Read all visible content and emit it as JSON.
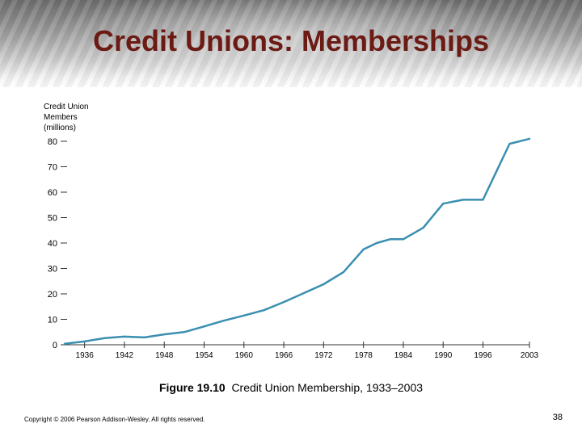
{
  "slide": {
    "title": "Credit Unions: Memberships",
    "caption_bold": "Figure 19.10",
    "caption_text": "Credit Union Membership, 1933–2003",
    "copyright": "Copyright © 2006 Pearson Addison-Wesley. All rights reserved.",
    "page_number": "38"
  },
  "chart_data": {
    "type": "line",
    "ylabel_lines": [
      "Credit Union",
      "Members",
      "(millions)"
    ],
    "xlabel": "",
    "xlim": [
      1933,
      2003
    ],
    "ylim": [
      0,
      80
    ],
    "yticks": [
      0,
      10,
      20,
      30,
      40,
      50,
      60,
      70,
      80
    ],
    "xticks": [
      1936,
      1942,
      1948,
      1954,
      1960,
      1966,
      1972,
      1978,
      1984,
      1990,
      1996,
      2003
    ],
    "grid": false,
    "line_color": "#3a8fb0",
    "series": [
      {
        "x": [
          1933,
          1936,
          1939,
          1942,
          1945,
          1948,
          1951,
          1954,
          1957,
          1960,
          1963,
          1966,
          1969,
          1972,
          1975,
          1978,
          1980,
          1982,
          1984,
          1987,
          1990,
          1993,
          1996,
          1998,
          2000,
          2003
        ],
        "y": [
          0.4,
          1.3,
          2.6,
          3.2,
          2.9,
          4.1,
          5.0,
          7.2,
          9.5,
          11.5,
          13.6,
          16.8,
          20.3,
          23.8,
          28.6,
          37.5,
          40.0,
          41.5,
          41.5,
          46.0,
          55.5,
          57.0,
          57.0,
          68.0,
          79.0,
          81.0
        ]
      }
    ]
  }
}
